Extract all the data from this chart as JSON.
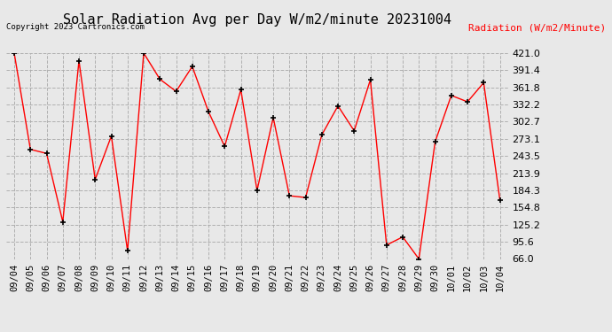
{
  "title": "Solar Radiation Avg per Day W/m2/minute 20231004",
  "ylabel": "Radiation (W/m2/Minute)",
  "copyright": "Copyright 2023 Cartronics.com",
  "dates": [
    "09/04",
    "09/05",
    "09/06",
    "09/07",
    "09/08",
    "09/09",
    "09/10",
    "09/11",
    "09/12",
    "09/13",
    "09/14",
    "09/15",
    "09/16",
    "09/17",
    "09/18",
    "09/19",
    "09/20",
    "09/21",
    "09/22",
    "09/23",
    "09/24",
    "09/25",
    "09/26",
    "09/27",
    "09/28",
    "09/29",
    "09/30",
    "10/01",
    "10/02",
    "10/03",
    "10/04"
  ],
  "values": [
    421.0,
    255.0,
    248.0,
    130.0,
    408.0,
    203.0,
    278.0,
    80.0,
    421.0,
    376.0,
    355.0,
    398.0,
    320.0,
    260.0,
    358.0,
    184.0,
    310.0,
    175.0,
    172.0,
    280.0,
    330.0,
    287.0,
    375.0,
    90.0,
    104.0,
    66.0,
    268.0,
    348.0,
    337.0,
    370.0,
    168.0
  ],
  "ylim": [
    66.0,
    421.0
  ],
  "yticks": [
    66.0,
    95.6,
    125.2,
    154.8,
    184.3,
    213.9,
    243.5,
    273.1,
    302.7,
    332.2,
    361.8,
    391.4,
    421.0
  ],
  "line_color": "red",
  "marker_color": "black",
  "bg_color": "#e8e8e8",
  "grid_color": "#aaaaaa",
  "title_fontsize": 11,
  "ylabel_color": "red",
  "copyright_color": "black",
  "tick_label_fontsize": 7.5
}
